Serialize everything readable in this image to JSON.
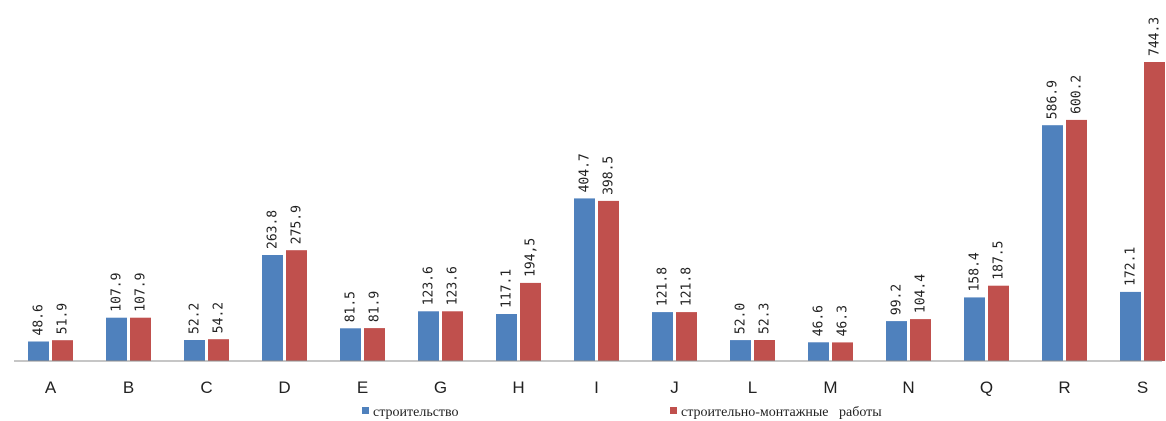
{
  "chart_data": {
    "type": "bar",
    "categories": [
      "A",
      "B",
      "C",
      "D",
      "E",
      "G",
      "H",
      "I",
      "J",
      "L",
      "M",
      "N",
      "Q",
      "R",
      "S"
    ],
    "series": [
      {
        "name": "строительство",
        "color": "#4f81bd",
        "values": [
          48.6,
          107.9,
          52.2,
          263.8,
          81.5,
          123.6,
          117.1,
          404.7,
          121.8,
          52.0,
          46.6,
          99.2,
          158.4,
          586.9,
          172.1
        ],
        "labels": [
          "48.6",
          "107.9",
          "52.2",
          "263.8",
          "81.5",
          "123.6",
          "117.1",
          "404.7",
          "121.8",
          "52.0",
          "46.6",
          "99.2",
          "158.4",
          "586.9",
          "172.1"
        ]
      },
      {
        "name": "строительно-монтажные   работы",
        "color": "#c0504d",
        "values": [
          51.9,
          107.9,
          54.2,
          275.9,
          81.9,
          123.6,
          194.5,
          398.5,
          121.8,
          52.3,
          46.3,
          104.4,
          187.5,
          600.2,
          744.3
        ],
        "labels": [
          "51.9",
          "107.9",
          "54.2",
          "275.9",
          "81.9",
          "123.6",
          "194,5",
          "398.5",
          "121.8",
          "52.3",
          "46.3",
          "104.4",
          "187.5",
          "600.2",
          "744.3"
        ]
      }
    ],
    "ylim": [
      0,
      744.3
    ],
    "grid": false,
    "legend_position": "bottom"
  }
}
